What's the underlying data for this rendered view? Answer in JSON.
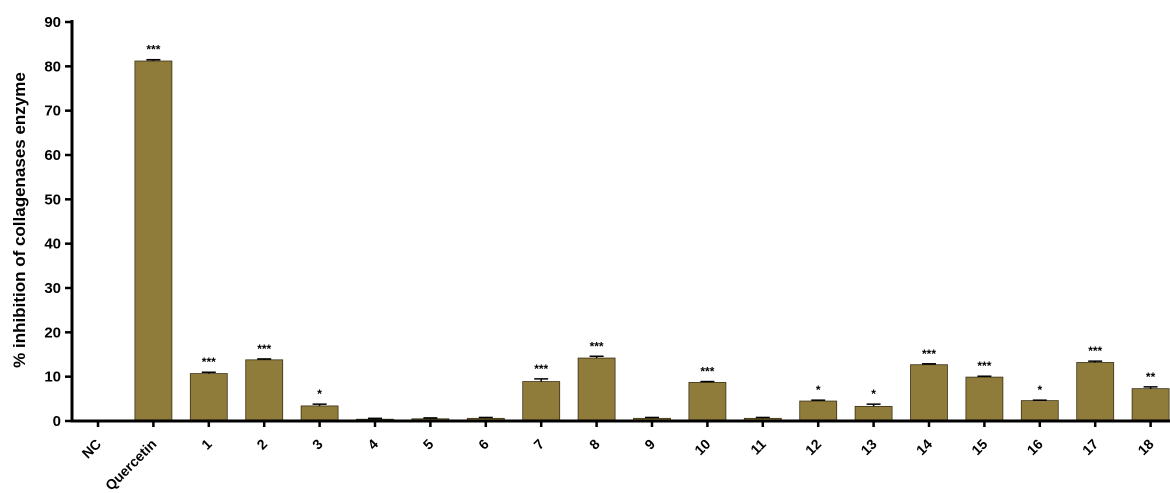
{
  "chart_data": {
    "type": "bar",
    "ylabel": "% inhibition of collagenases enzyme",
    "xlabel": "",
    "ylim": [
      0,
      90
    ],
    "yticks": [
      "0",
      "10",
      "20",
      "30",
      "40",
      "50",
      "60",
      "70",
      "80",
      "90"
    ],
    "bar_color": "#8f7b3a",
    "categories": [
      "NC",
      "Quercetin",
      "1",
      "2",
      "3",
      "4",
      "5",
      "6",
      "7",
      "8",
      "9",
      "10",
      "11",
      "12",
      "13",
      "14",
      "15",
      "16",
      "17",
      "18"
    ],
    "values": [
      0,
      81.2,
      10.7,
      13.8,
      3.4,
      0.4,
      0.5,
      0.6,
      8.9,
      14.2,
      0.6,
      8.7,
      0.6,
      4.5,
      3.3,
      12.7,
      9.9,
      4.6,
      13.2,
      7.3
    ],
    "errors": [
      0,
      0.3,
      0.3,
      0.2,
      0.4,
      0.2,
      0.2,
      0.2,
      0.6,
      0.4,
      0.2,
      0.2,
      0.2,
      0.2,
      0.5,
      0.2,
      0.2,
      0.1,
      0.3,
      0.4
    ],
    "significance": [
      "",
      "***",
      "***",
      "***",
      "*",
      "",
      "",
      "",
      "***",
      "***",
      "",
      "***",
      "",
      "*",
      "*",
      "***",
      "***",
      "*",
      "***",
      "**"
    ]
  }
}
